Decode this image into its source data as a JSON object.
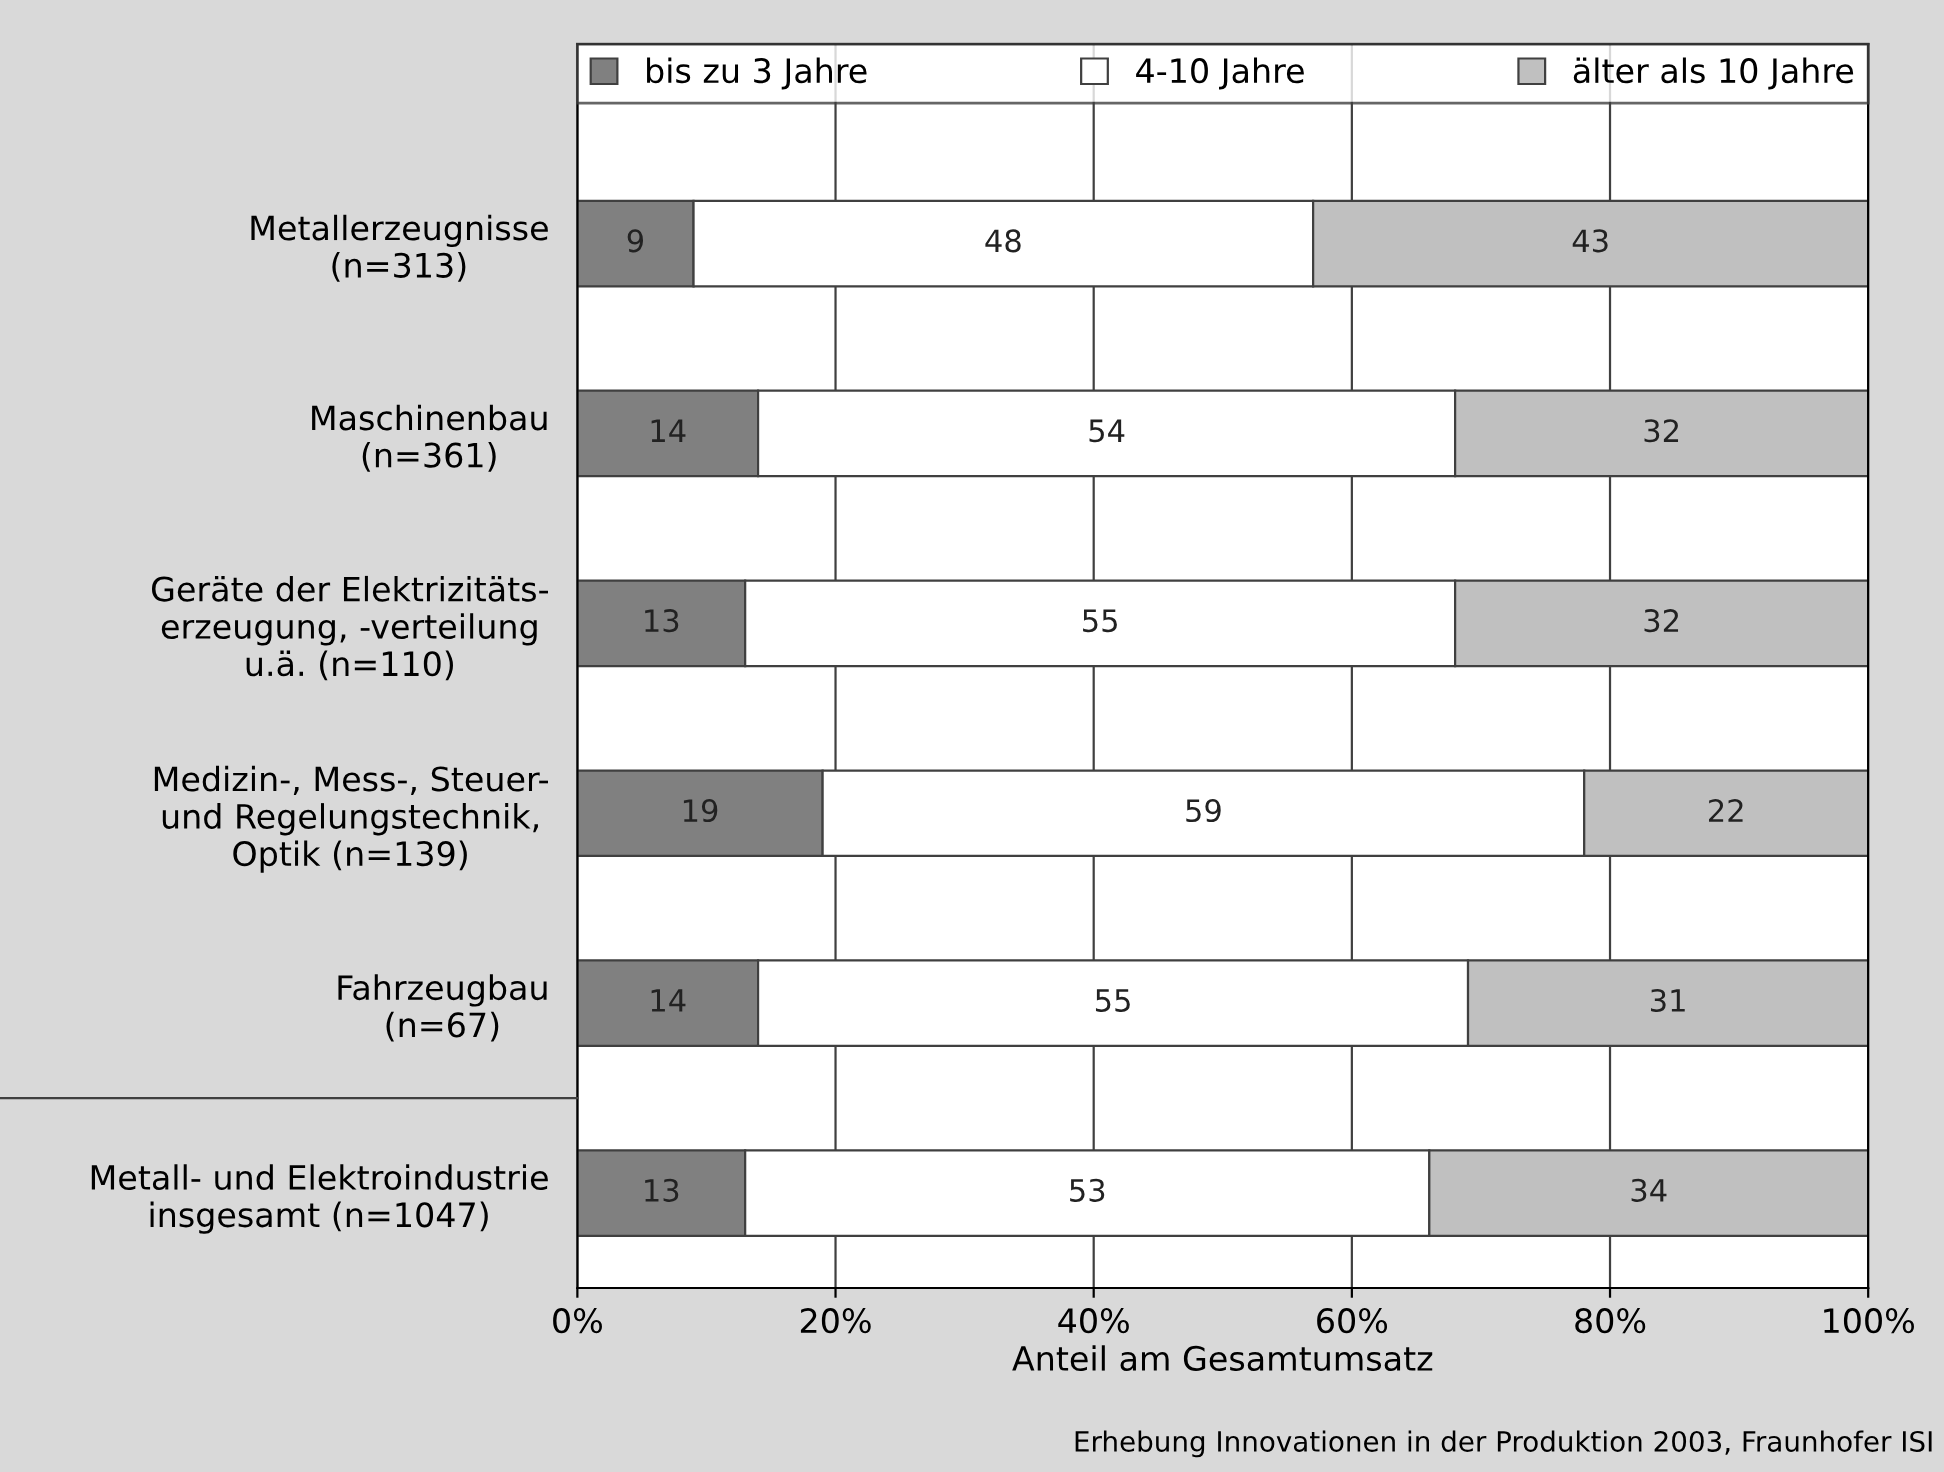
{
  "chart_data": {
    "type": "bar",
    "orientation": "horizontal",
    "stacked": true,
    "data_labels": true,
    "grid": "x",
    "legend": "top",
    "xlabel": "Anteil am Gesamtumsatz",
    "categories": [
      "Metallerzeugnisse\n(n=313)",
      "Maschinenbau\n(n=361)",
      "Geräte der Elektrizitäts-\nerzeugung, -verteilung\nu.ä. (n=110)",
      "Medizin-, Mess-, Steuer-\nund Regelungstechnik,\nOptik (n=139)",
      "Fahrzeugbau\n(n=67)",
      "Metall- und Elektroindustrie\ninsgesamt (n=1047)"
    ],
    "series": [
      {
        "name": "bis zu 3 Jahre",
        "color": "#808080",
        "values": [
          9,
          14,
          13,
          19,
          14,
          13
        ]
      },
      {
        "name": "4-10 Jahre",
        "color": "#ffffff",
        "values": [
          48,
          54,
          55,
          59,
          55,
          53
        ]
      },
      {
        "name": "älter als 10 Jahre",
        "color": "#c0c0c0",
        "values": [
          43,
          32,
          32,
          22,
          31,
          34
        ]
      }
    ],
    "xlim": [
      0,
      100
    ],
    "xticks": [
      {
        "value": 0,
        "label": "0%"
      },
      {
        "value": 20,
        "label": "20%"
      },
      {
        "value": 40,
        "label": "40%"
      },
      {
        "value": 60,
        "label": "60%"
      },
      {
        "value": 80,
        "label": "80%"
      },
      {
        "value": 100,
        "label": "100%"
      }
    ],
    "annotations": [
      "Erhebung Innovationen in der Produktion 2003, Fraunhofer ISI"
    ]
  }
}
